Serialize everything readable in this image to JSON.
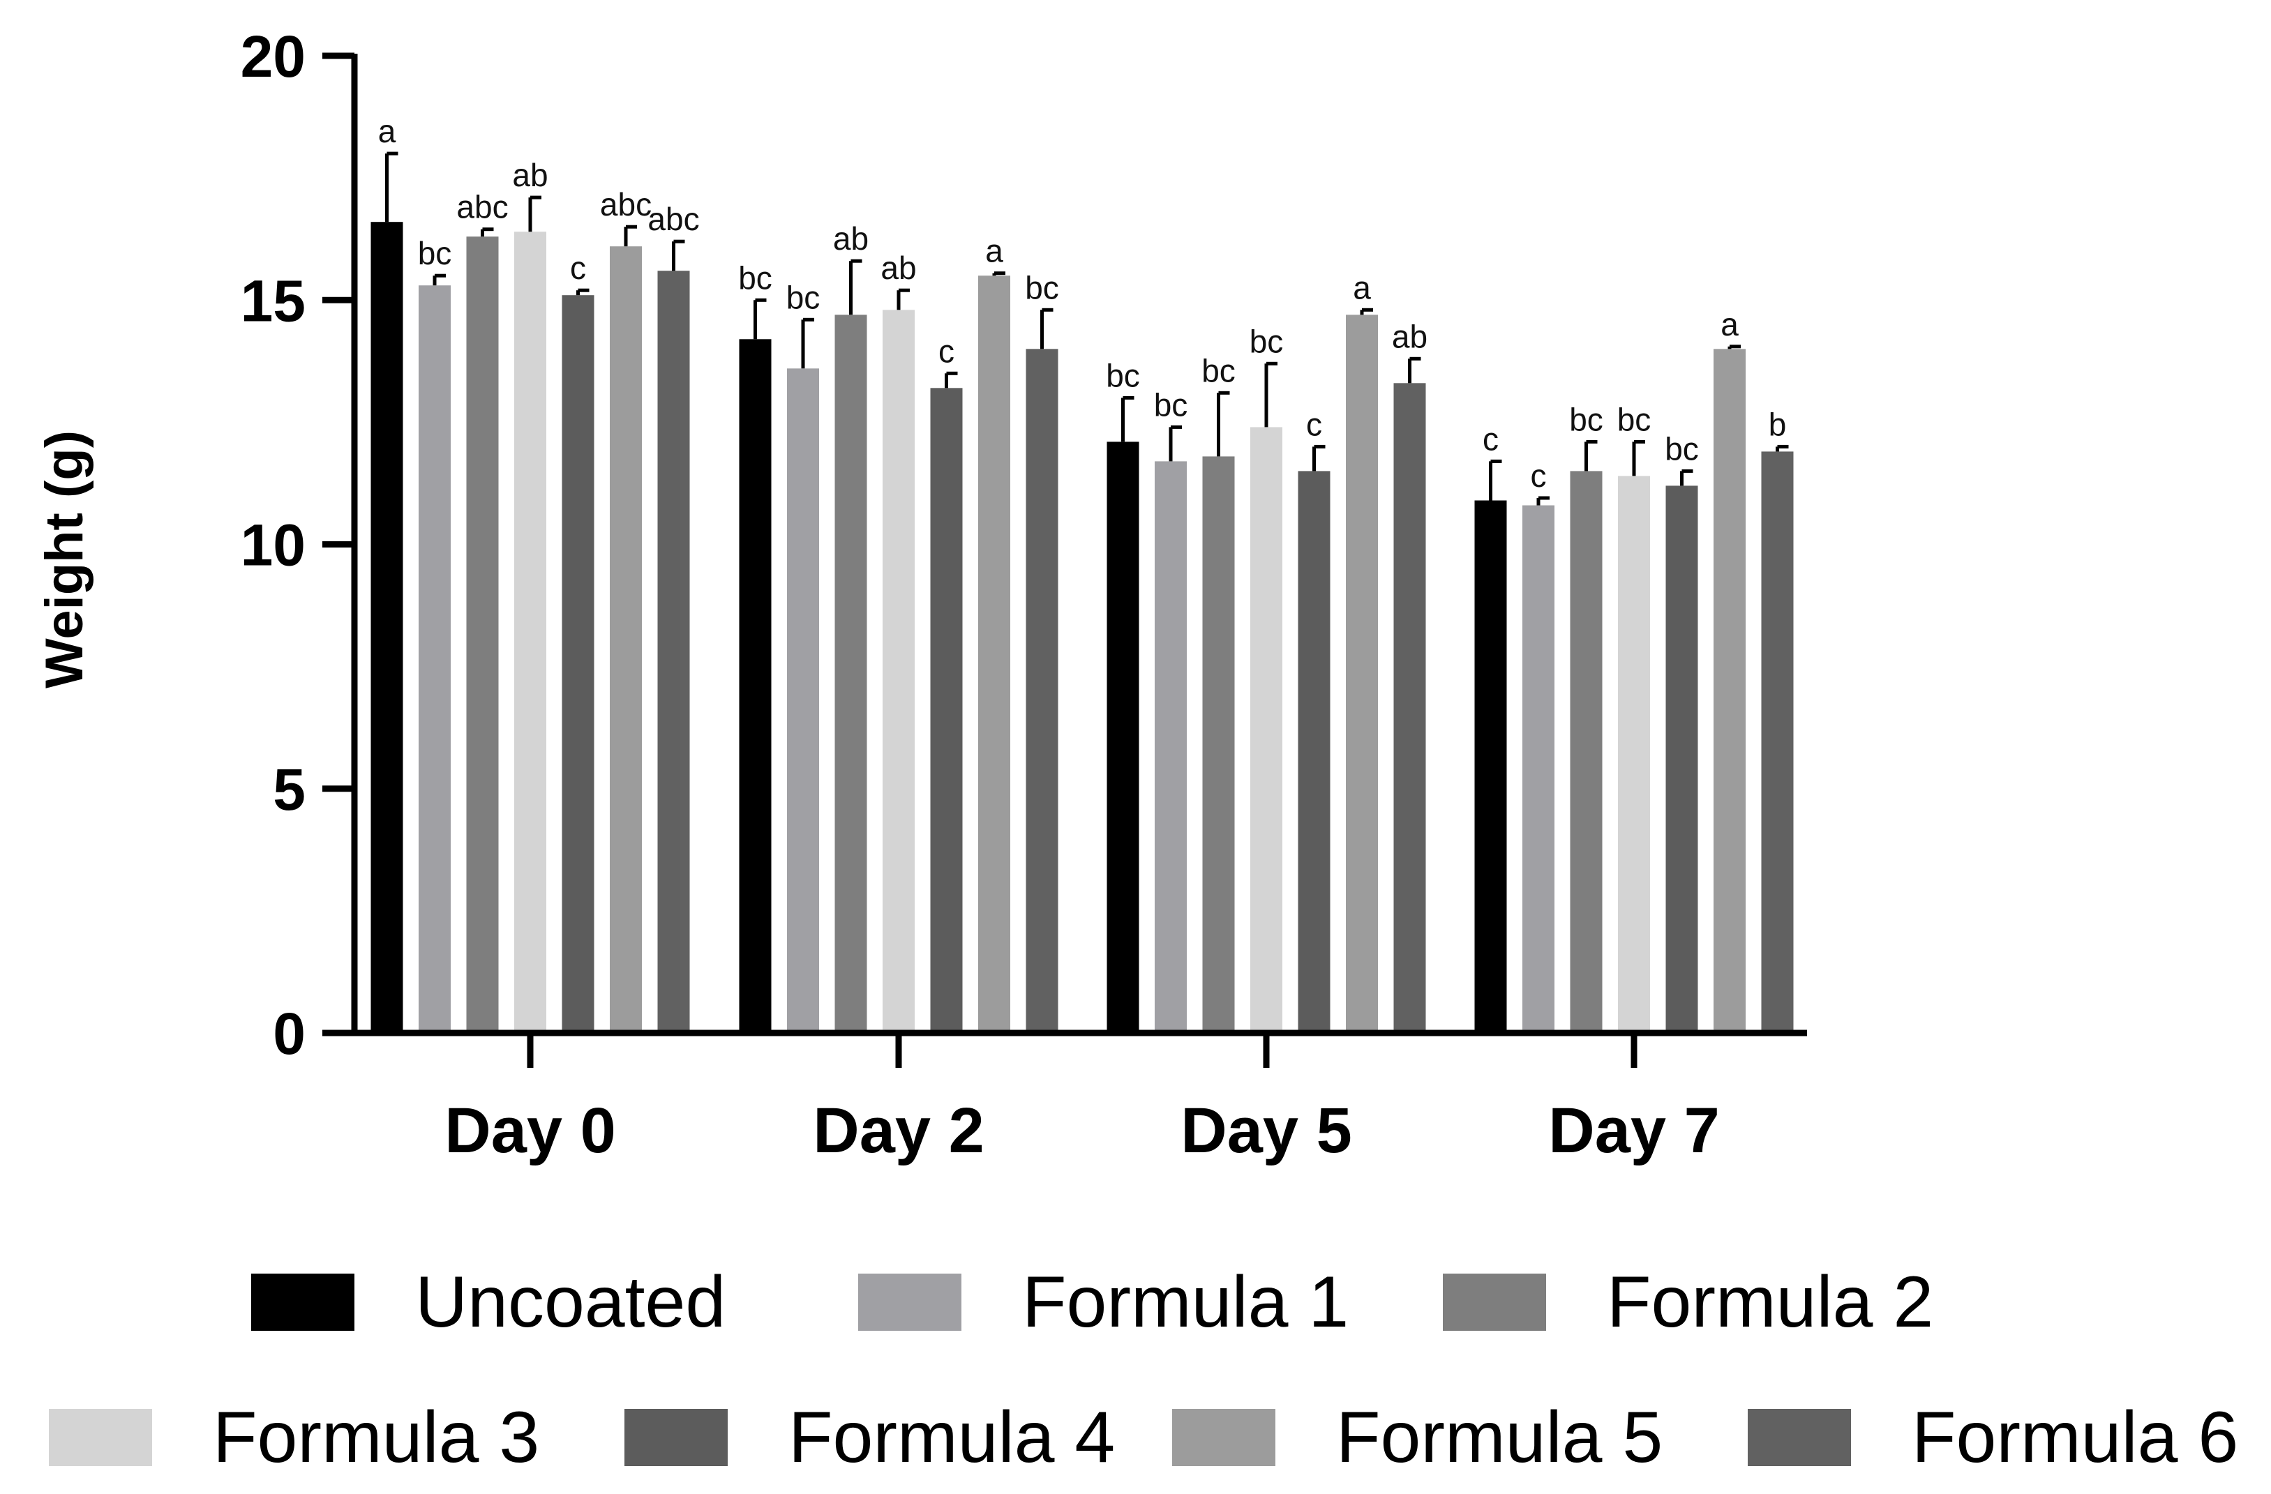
{
  "chart_data": {
    "type": "bar",
    "title": "",
    "xlabel": "",
    "ylabel": "Weight (g)",
    "ylim": [
      0,
      20
    ],
    "yticks": [
      0,
      5,
      10,
      15,
      20
    ],
    "grid": false,
    "legend_position": "bottom",
    "categories": [
      "Day 0",
      "Day 2",
      "Day 5",
      "Day 7"
    ],
    "series": [
      {
        "name": "Uncoated",
        "color": "#000000",
        "values": [
          16.6,
          14.2,
          12.1,
          10.9
        ],
        "errors": [
          1.4,
          0.8,
          0.9,
          0.8
        ],
        "labels": [
          "a",
          "bc",
          "bc",
          "c"
        ]
      },
      {
        "name": "Formula 1",
        "color": "#a0a0a4",
        "values": [
          15.3,
          13.6,
          11.7,
          10.8
        ],
        "errors": [
          0.2,
          1.0,
          0.7,
          0.15
        ],
        "labels": [
          "bc",
          "bc",
          "bc",
          "c"
        ]
      },
      {
        "name": "Formula 2",
        "color": "#7e7e7e",
        "values": [
          16.3,
          14.7,
          11.8,
          11.5
        ],
        "errors": [
          0.15,
          1.1,
          1.3,
          0.6
        ],
        "labels": [
          "abc",
          "ab",
          "bc",
          "bc"
        ]
      },
      {
        "name": "Formula 3",
        "color": "#d4d4d4",
        "values": [
          16.4,
          14.8,
          12.4,
          11.4
        ],
        "errors": [
          0.7,
          0.4,
          1.3,
          0.7
        ],
        "labels": [
          "ab",
          "ab",
          "bc",
          "bc"
        ]
      },
      {
        "name": "Formula 4",
        "color": "#5c5c5c",
        "values": [
          15.1,
          13.2,
          11.5,
          11.2
        ],
        "errors": [
          0.1,
          0.3,
          0.5,
          0.3
        ],
        "labels": [
          "c",
          "c",
          "c",
          "bc"
        ]
      },
      {
        "name": "Formula 5",
        "color": "#9c9c9c",
        "values": [
          16.1,
          15.5,
          14.7,
          14.0
        ],
        "errors": [
          0.4,
          0.05,
          0.1,
          0.05
        ],
        "labels": [
          "abc",
          "a",
          "a",
          "a"
        ]
      },
      {
        "name": "Formula 6",
        "color": "#616161",
        "values": [
          15.6,
          14.0,
          13.3,
          11.9
        ],
        "errors": [
          0.6,
          0.8,
          0.5,
          0.1
        ],
        "labels": [
          "abc",
          "bc",
          "ab",
          "b"
        ]
      }
    ]
  }
}
